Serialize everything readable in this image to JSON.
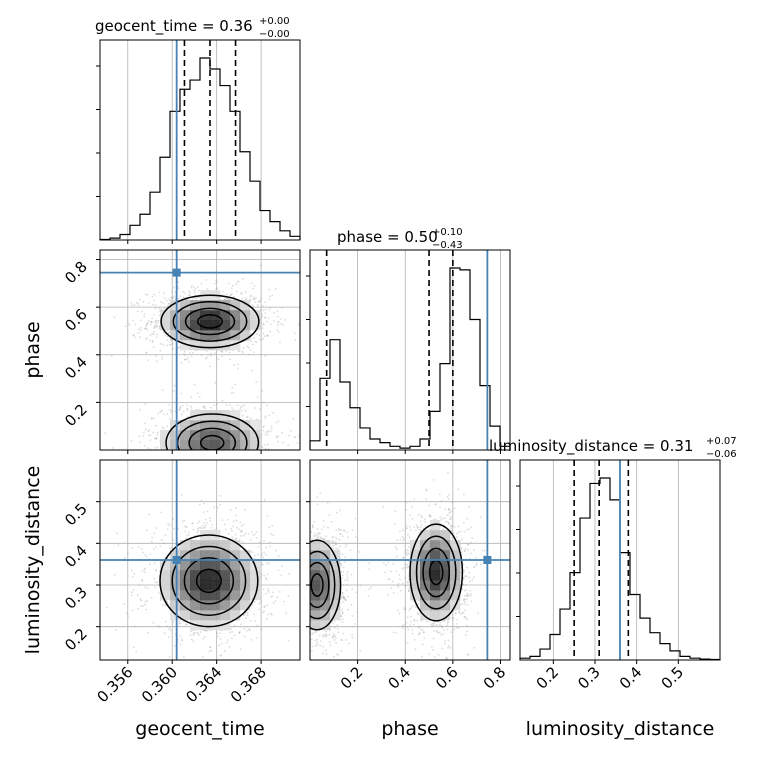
{
  "chart_data": {
    "type": "corner",
    "colors": {
      "truth": "#4682b4",
      "hist": "#000000",
      "grid": "#b0b0b0",
      "points": "#9a9a9a"
    },
    "parameters": [
      {
        "name": "geocent_time",
        "label": "geocent_time",
        "range": [
          0.3535,
          0.3715
        ],
        "truth": 0.3604,
        "ticks": [
          0.356,
          0.36,
          0.364,
          0.368
        ],
        "tick_labels": [
          "0.356",
          "0.360",
          "0.364",
          "0.368"
        ],
        "median": 0.3634,
        "lower": 0.3611,
        "upper": 0.3657,
        "title": "geocent_time = 0.36",
        "title_sup": "+0.00",
        "title_sub": "−0.00"
      },
      {
        "name": "phase",
        "label": "phase",
        "range": [
          0.0,
          0.84
        ],
        "truth": 0.745,
        "ticks": [
          0.2,
          0.4,
          0.6,
          0.8
        ],
        "tick_labels": [
          "0.2",
          "0.4",
          "0.6",
          "0.8"
        ],
        "median": 0.5,
        "lower": 0.07,
        "upper": 0.6,
        "title": "phase = 0.50",
        "title_sup": "+0.10",
        "title_sub": "−0.43"
      },
      {
        "name": "luminosity_distance",
        "label": "luminosity_distance",
        "range": [
          0.12,
          0.6
        ],
        "truth": 0.36,
        "ticks": [
          0.2,
          0.3,
          0.4,
          0.5
        ],
        "tick_labels": [
          "0.2",
          "0.3",
          "0.4",
          "0.5"
        ],
        "median": 0.31,
        "lower": 0.25,
        "upper": 0.38,
        "title": "luminosity_distance = 0.31",
        "title_sup": "+0.07",
        "title_sub": "−0.06"
      }
    ],
    "histograms": [
      {
        "param": "geocent_time",
        "edges_start": 0.3535,
        "bin_width": 0.0009,
        "counts": [
          0.003,
          0.01,
          0.03,
          0.08,
          0.14,
          0.26,
          0.45,
          0.7,
          0.82,
          0.87,
          0.99,
          0.93,
          0.84,
          0.7,
          0.48,
          0.32,
          0.16,
          0.1,
          0.05,
          0.02
        ]
      },
      {
        "param": "phase",
        "edges_start": 0.0,
        "bin_width": 0.042,
        "counts": [
          0.05,
          0.39,
          0.6,
          0.37,
          0.23,
          0.12,
          0.06,
          0.04,
          0.02,
          0.01,
          0.02,
          0.06,
          0.21,
          0.47,
          0.99,
          0.98,
          0.71,
          0.35,
          0.13,
          0.02
        ]
      },
      {
        "param": "luminosity_distance",
        "edges_start": 0.12,
        "bin_width": 0.024,
        "counts": [
          0.01,
          0.02,
          0.06,
          0.14,
          0.28,
          0.48,
          0.78,
          0.97,
          1.0,
          0.88,
          0.59,
          0.36,
          0.23,
          0.15,
          0.09,
          0.05,
          0.02,
          0.01,
          0.005,
          0.003
        ]
      }
    ],
    "joint": [
      {
        "x": "geocent_time",
        "y": "phase",
        "modes": [
          {
            "mx": 0.3634,
            "my": 0.54,
            "sx": 0.0022,
            "sy": 0.055,
            "w": 1.0
          },
          {
            "mx": 0.3636,
            "my": 0.03,
            "sx": 0.0024,
            "sy": 0.07,
            "w": 0.75
          }
        ]
      },
      {
        "x": "geocent_time",
        "y": "luminosity_distance",
        "modes": [
          {
            "mx": 0.3633,
            "my": 0.31,
            "sx": 0.0022,
            "sy": 0.055,
            "w": 1.0
          }
        ]
      },
      {
        "x": "phase",
        "y": "luminosity_distance",
        "modes": [
          {
            "mx": 0.53,
            "my": 0.33,
            "sx": 0.055,
            "sy": 0.058,
            "w": 1.0
          },
          {
            "mx": 0.03,
            "my": 0.3,
            "sx": 0.055,
            "sy": 0.06,
            "w": 0.8
          }
        ]
      }
    ],
    "grid": true
  }
}
